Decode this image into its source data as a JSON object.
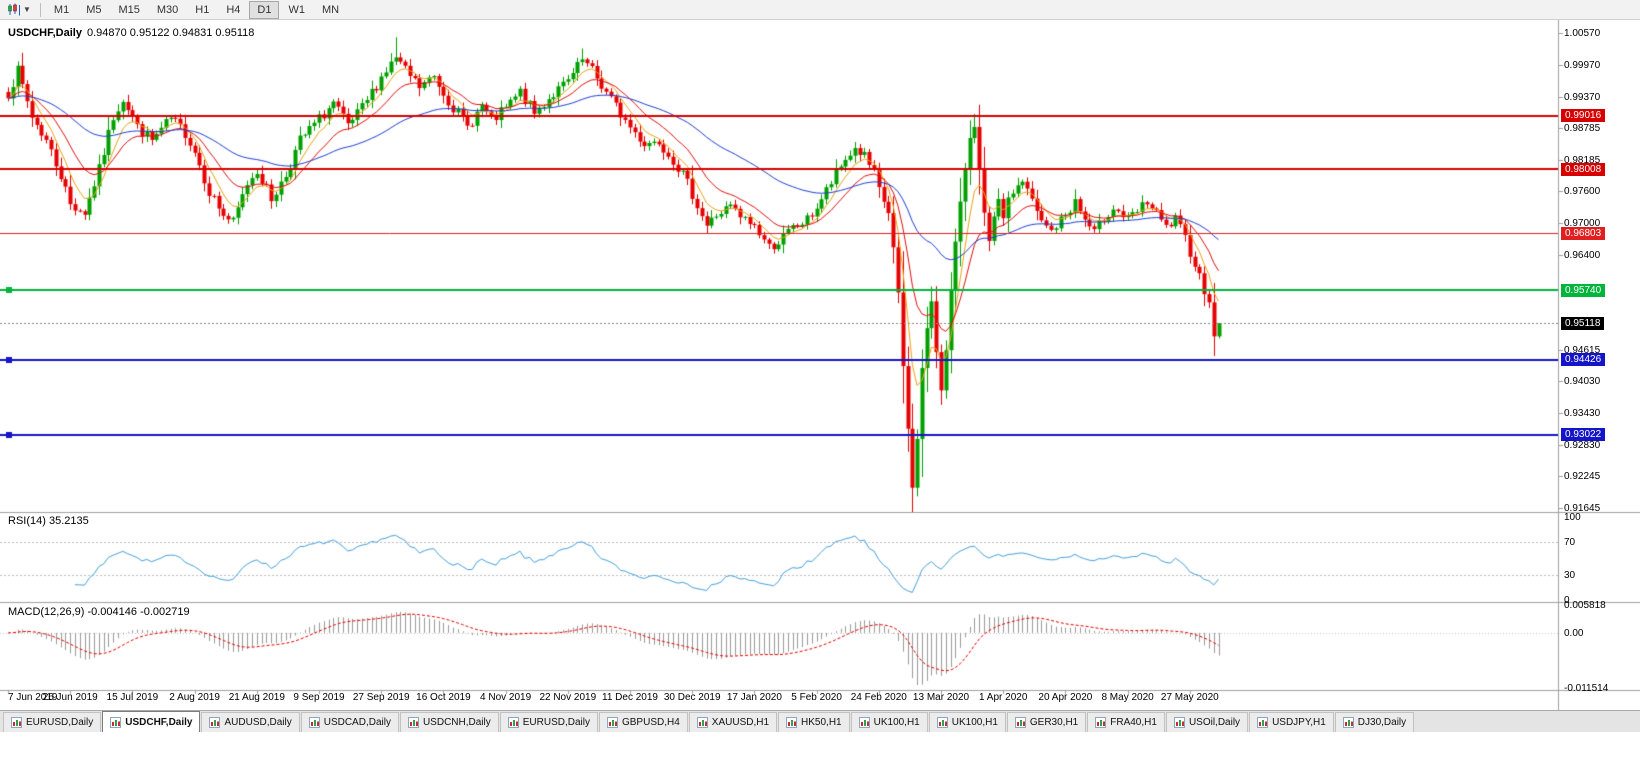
{
  "toolbar": {
    "timeframes": [
      "M1",
      "M5",
      "M15",
      "M30",
      "H1",
      "H4",
      "D1",
      "W1",
      "MN"
    ],
    "active_timeframe": "D1",
    "chart_type_icon": "candlestick-chart-icon"
  },
  "chart": {
    "symbol_title": "USDCHF,Daily",
    "ohlc_text": "0.94870 0.95122 0.94831 0.95118",
    "price_axis_labels": [
      "1.00570",
      "0.99970",
      "0.99370",
      "0.98785",
      "0.98185",
      "0.97600",
      "0.97000",
      "0.96400",
      "0.94615",
      "0.94030",
      "0.93430",
      "0.92830",
      "0.92245",
      "0.91645"
    ],
    "levels": [
      {
        "value": 0.99016,
        "label": "0.99016",
        "color": "#d60000",
        "width": 2,
        "handle": false
      },
      {
        "value": 0.98008,
        "label": "0.98008",
        "color": "#d60000",
        "width": 2,
        "handle": false
      },
      {
        "value": 0.96803,
        "label": "0.96803",
        "color": "#e02020",
        "width": 1,
        "handle": false
      },
      {
        "value": 0.9574,
        "label": "0.95740",
        "color": "#00b43c",
        "width": 2,
        "handle": true
      },
      {
        "value": 0.94426,
        "label": "0.94426",
        "color": "#1414c8",
        "width": 2,
        "handle": true
      },
      {
        "value": 0.93022,
        "label": "0.93022",
        "color": "#1414c8",
        "width": 2,
        "handle": true
      }
    ],
    "current_price": {
      "value": 0.95118,
      "label": "0.95118",
      "tag_color": "#000000"
    }
  },
  "rsi": {
    "title": "RSI(14) 35.2135",
    "axis_labels": [
      "100",
      "70",
      "30",
      "0"
    ]
  },
  "macd": {
    "title": "MACD(12,26,9) -0.004146 -0.002719",
    "axis_labels": [
      "0.005818",
      "0.00",
      "-0.011514"
    ]
  },
  "date_axis": [
    "7 Jun 2019",
    "26 Jun 2019",
    "15 Jul 2019",
    "2 Aug 2019",
    "21 Aug 2019",
    "9 Sep 2019",
    "27 Sep 2019",
    "16 Oct 2019",
    "4 Nov 2019",
    "22 Nov 2019",
    "11 Dec 2019",
    "30 Dec 2019",
    "17 Jan 2020",
    "5 Feb 2020",
    "24 Feb 2020",
    "13 Mar 2020",
    "1 Apr 2020",
    "20 Apr 2020",
    "8 May 2020",
    "27 May 2020"
  ],
  "tabs": [
    {
      "label": "EURUSD,Daily"
    },
    {
      "label": "USDCHF,Daily",
      "active": true
    },
    {
      "label": "AUDUSD,Daily"
    },
    {
      "label": "USDCAD,Daily"
    },
    {
      "label": "USDCNH,Daily"
    },
    {
      "label": "EURUSD,Daily"
    },
    {
      "label": "GBPUSD,H4"
    },
    {
      "label": "XAUUSD,H1"
    },
    {
      "label": "HK50,H1"
    },
    {
      "label": "UK100,H1"
    },
    {
      "label": "UK100,H1"
    },
    {
      "label": "GER30,H1"
    },
    {
      "label": "FRA40,H1"
    },
    {
      "label": "USOil,Daily"
    },
    {
      "label": "USDJPY,H1"
    },
    {
      "label": "DJ30,Daily"
    }
  ],
  "colors": {
    "background": "#ffffff",
    "candle_up": "#00a000",
    "candle_down": "#e60000",
    "rsi_line": "#46a0dc",
    "rsi_levels": "#c0c0c0",
    "macd_histogram": "#9a9a9a",
    "macd_signal": "#e60000",
    "current_price_line": "#888888",
    "axis_line": "#a0a0a0"
  },
  "chart_data": {
    "type": "candlestick",
    "symbol": "USDCHF",
    "period": "Daily",
    "bars": 254,
    "last_candle": {
      "open": 0.9487,
      "high": 0.95122,
      "low": 0.94831,
      "close": 0.95118
    },
    "price_range": {
      "axis_top": 1.0057,
      "axis_bottom": 0.91645
    },
    "close_waypoints": [
      [
        0,
        0.9945
      ],
      [
        2,
        0.9985
      ],
      [
        5,
        0.99
      ],
      [
        8,
        0.9855
      ],
      [
        11,
        0.979
      ],
      [
        13,
        0.9735
      ],
      [
        16,
        0.972
      ],
      [
        19,
        0.98
      ],
      [
        22,
        0.99
      ],
      [
        24,
        0.9935
      ],
      [
        27,
        0.988
      ],
      [
        30,
        0.9855
      ],
      [
        34,
        0.9895
      ],
      [
        37,
        0.987
      ],
      [
        39,
        0.9835
      ],
      [
        42,
        0.976
      ],
      [
        45,
        0.9715
      ],
      [
        47,
        0.97
      ],
      [
        50,
        0.9775
      ],
      [
        52,
        0.98
      ],
      [
        55,
        0.9745
      ],
      [
        58,
        0.979
      ],
      [
        61,
        0.9855
      ],
      [
        65,
        0.9895
      ],
      [
        68,
        0.9925
      ],
      [
        71,
        0.988
      ],
      [
        74,
        0.9915
      ],
      [
        78,
        0.9975
      ],
      [
        81,
        1.001
      ],
      [
        83,
        0.9985
      ],
      [
        86,
        0.9955
      ],
      [
        89,
        0.9975
      ],
      [
        91,
        0.9945
      ],
      [
        94,
        0.9905
      ],
      [
        96,
        0.988
      ],
      [
        99,
        0.992
      ],
      [
        101,
        0.989
      ],
      [
        104,
        0.9915
      ],
      [
        107,
        0.9945
      ],
      [
        110,
        0.9905
      ],
      [
        113,
        0.9935
      ],
      [
        117,
        0.9965
      ],
      [
        120,
        1.0005
      ],
      [
        122,
        0.9985
      ],
      [
        125,
        0.9945
      ],
      [
        128,
        0.9905
      ],
      [
        130,
        0.988
      ],
      [
        133,
        0.985
      ],
      [
        136,
        0.9855
      ],
      [
        139,
        0.982
      ],
      [
        141,
        0.979
      ],
      [
        143,
        0.9755
      ],
      [
        146,
        0.9695
      ],
      [
        148,
        0.9715
      ],
      [
        151,
        0.973
      ],
      [
        153,
        0.971
      ],
      [
        156,
        0.9695
      ],
      [
        159,
        0.9655
      ],
      [
        161,
        0.9665
      ],
      [
        164,
        0.969
      ],
      [
        167,
        0.9705
      ],
      [
        169,
        0.973
      ],
      [
        172,
        0.9775
      ],
      [
        175,
        0.982
      ],
      [
        177,
        0.984
      ],
      [
        179,
        0.9825
      ],
      [
        181,
        0.979
      ],
      [
        182,
        0.976
      ],
      [
        184,
        0.972
      ],
      [
        185,
        0.965
      ],
      [
        186,
        0.956
      ],
      [
        187,
        0.943
      ],
      [
        188,
        0.931
      ],
      [
        189,
        0.921
      ],
      [
        190,
        0.929
      ],
      [
        191,
        0.943
      ],
      [
        192,
        0.95
      ],
      [
        193,
        0.9545
      ],
      [
        194,
        0.946
      ],
      [
        195,
        0.939
      ],
      [
        196,
        0.947
      ],
      [
        197,
        0.957
      ],
      [
        198,
        0.966
      ],
      [
        199,
        0.973
      ],
      [
        200,
        0.9805
      ],
      [
        201,
        0.9865
      ],
      [
        202,
        0.989
      ],
      [
        203,
        0.9795
      ],
      [
        204,
        0.971
      ],
      [
        205,
        0.966
      ],
      [
        206,
        0.9705
      ],
      [
        207,
        0.9735
      ],
      [
        208,
        0.9715
      ],
      [
        210,
        0.976
      ],
      [
        212,
        0.978
      ],
      [
        214,
        0.974
      ],
      [
        216,
        0.97
      ],
      [
        218,
        0.9685
      ],
      [
        221,
        0.9715
      ],
      [
        223,
        0.974
      ],
      [
        225,
        0.9705
      ],
      [
        227,
        0.968
      ],
      [
        229,
        0.971
      ],
      [
        231,
        0.973
      ],
      [
        234,
        0.9705
      ],
      [
        236,
        0.972
      ],
      [
        238,
        0.974
      ],
      [
        240,
        0.9715
      ],
      [
        242,
        0.969
      ],
      [
        244,
        0.9705
      ],
      [
        246,
        0.967
      ],
      [
        248,
        0.9625
      ],
      [
        249,
        0.96
      ],
      [
        250,
        0.9575
      ],
      [
        251,
        0.956
      ],
      [
        252,
        0.9487
      ],
      [
        253,
        0.95118
      ]
    ],
    "spikes": [
      {
        "bar": 81,
        "high": 1.0049
      },
      {
        "bar": 120,
        "high": 1.0028
      },
      {
        "bar": 189,
        "low": 0.9176
      },
      {
        "bar": 202,
        "high": 0.9905
      },
      {
        "bar": 252,
        "low": 0.9483
      }
    ],
    "moving_averages": [
      {
        "name": "fast",
        "period": 6,
        "color": "#e8a414"
      },
      {
        "name": "medium",
        "period": 14,
        "color": "#e01010"
      },
      {
        "name": "slow",
        "period": 45,
        "color": "#2040d0"
      }
    ],
    "rsi": {
      "period": 14,
      "current": 35.2135,
      "upper_level": 70,
      "lower_level": 30,
      "scale": [
        0,
        100
      ]
    },
    "macd": {
      "fast": 12,
      "slow": 26,
      "signal": 9,
      "values": [
        -0.004146,
        -0.002719
      ],
      "scale_top": 0.005818,
      "scale_bottom": -0.011514
    }
  }
}
